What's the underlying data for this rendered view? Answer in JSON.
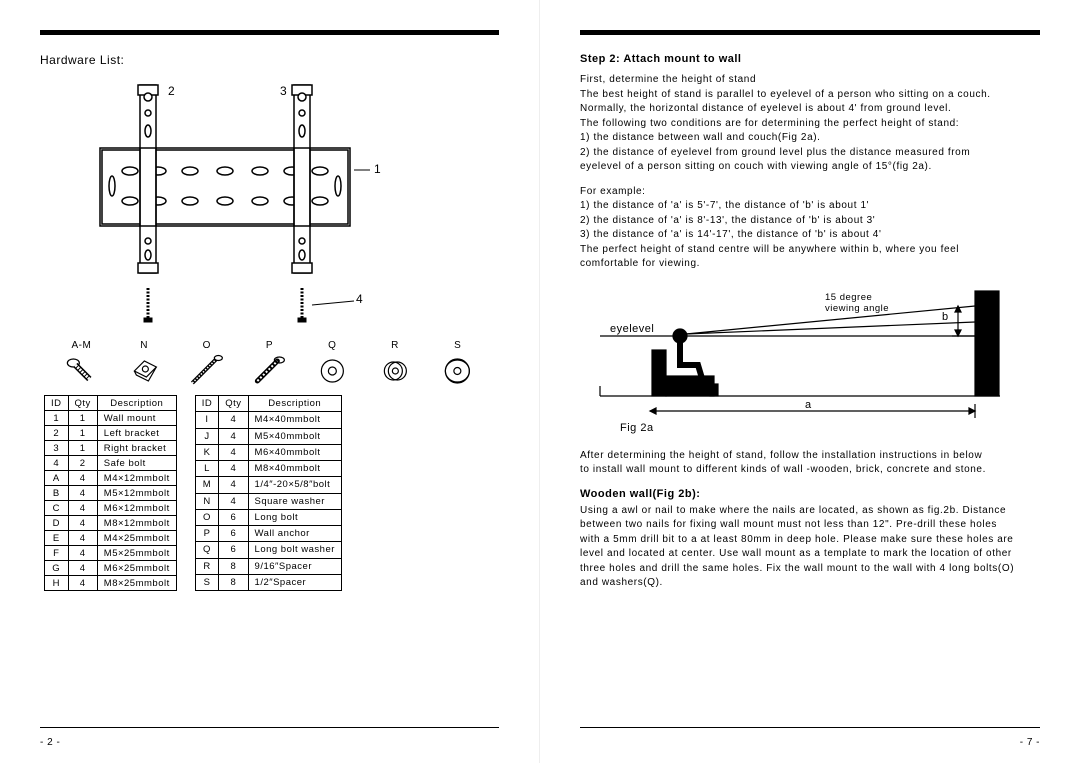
{
  "left_page": {
    "title": "Hardware List:",
    "diagram_labels": {
      "l1": "1",
      "l2": "2",
      "l3": "3",
      "l4": "4"
    },
    "part_letters": [
      "A-M",
      "N",
      "O",
      "P",
      "Q",
      "R",
      "S"
    ],
    "table1_headers": [
      "ID",
      "Qty",
      "Description"
    ],
    "table1_rows": [
      [
        "1",
        "1",
        "Wall mount"
      ],
      [
        "2",
        "1",
        "Left bracket"
      ],
      [
        "3",
        "1",
        "Right bracket"
      ],
      [
        "4",
        "2",
        "Safe bolt"
      ],
      [
        "A",
        "4",
        "M4×12mmbolt"
      ],
      [
        "B",
        "4",
        "M5×12mmbolt"
      ],
      [
        "C",
        "4",
        "M6×12mmbolt"
      ],
      [
        "D",
        "4",
        "M8×12mmbolt"
      ],
      [
        "E",
        "4",
        "M4×25mmbolt"
      ],
      [
        "F",
        "4",
        "M5×25mmbolt"
      ],
      [
        "G",
        "4",
        "M6×25mmbolt"
      ],
      [
        "H",
        "4",
        "M8×25mmbolt"
      ]
    ],
    "table2_headers": [
      "ID",
      "Qty",
      "Description"
    ],
    "table2_rows": [
      [
        "I",
        "4",
        "M4×40mmbolt"
      ],
      [
        "J",
        "4",
        "M5×40mmbolt"
      ],
      [
        "K",
        "4",
        "M6×40mmbolt"
      ],
      [
        "L",
        "4",
        "M8×40mmbolt"
      ],
      [
        "M",
        "4",
        "1/4″-20×5/8″bolt"
      ],
      [
        "N",
        "4",
        "Square washer"
      ],
      [
        "O",
        "6",
        "Long bolt"
      ],
      [
        "P",
        "6",
        "Wall anchor"
      ],
      [
        "Q",
        "6",
        "Long bolt washer"
      ],
      [
        "R",
        "8",
        "9/16″Spacer"
      ],
      [
        "S",
        "8",
        "1/2″Spacer"
      ]
    ],
    "page_num": "- 2 -"
  },
  "right_page": {
    "step_title": "Step 2: Attach mount to wall",
    "para1_heading": "First, determine the  height of stand",
    "para1_l1": "The best  height of stand is parallel to eyelevel of a person who sitting on a couch.",
    "para1_l2": "Normally, the horizontal distance of eyelevel is about 4' from ground level.",
    "para1_l3": "The following two conditions are for determining the perfect height of stand:",
    "para1_i1": "1)   the  distance between wall and couch(Fig 2a).",
    "para1_i2": "2)   the  distance of eyelevel from ground level plus the distance measured from",
    "para1_i2b": "eyelevel of a person sitting on couch with viewing angle of 15°(fig 2a).",
    "ex_heading": "For example:",
    "ex1": "1)   the  distance of 'a' is 5'-7', the distance of 'b' is about 1'",
    "ex2": "2)   the  distance of 'a' is 8'-13', the distance of 'b' is about 3'",
    "ex3": "3)   the  distance of 'a' is 14'-17', the distance of 'b' is about 4'",
    "ex_tail1": "The perfect height of stand centre will be anywhere within b, where you feel",
    "ex_tail2": "comfortable for viewing.",
    "fig2a": {
      "angle_label": "15 degree\nviewing angle",
      "b_label": "b",
      "eyelevel": "eyelevel",
      "a_label": "a",
      "caption": "Fig  2a"
    },
    "after_fig1": "After determining the height of stand, follow the installation instructions in below",
    "after_fig2": "to install wall mount to different kinds of wall -wooden, brick, concrete and stone.",
    "wooden_title": "Wooden wall(Fig 2b):",
    "wooden1": "Using a awl or nail to make where the nails are located, as shown as fig.2b. Distance",
    "wooden2": "between two  nails for fixing wall mount must not less than 12\". Pre-drill these holes",
    "wooden3": "with a 5mm drill  bit to a at least 80mm in deep hole. Please make sure these holes are",
    "wooden4": "level and located at center. Use wall mount as a template to mark the location of other",
    "wooden5": "three holes and drill the same holes. Fix the wall mount to the wall with 4 long bolts(O)",
    "wooden6": "and washers(Q).",
    "page_num": "- 7 -"
  },
  "colors": {
    "line": "#000000",
    "bg": "#ffffff"
  }
}
